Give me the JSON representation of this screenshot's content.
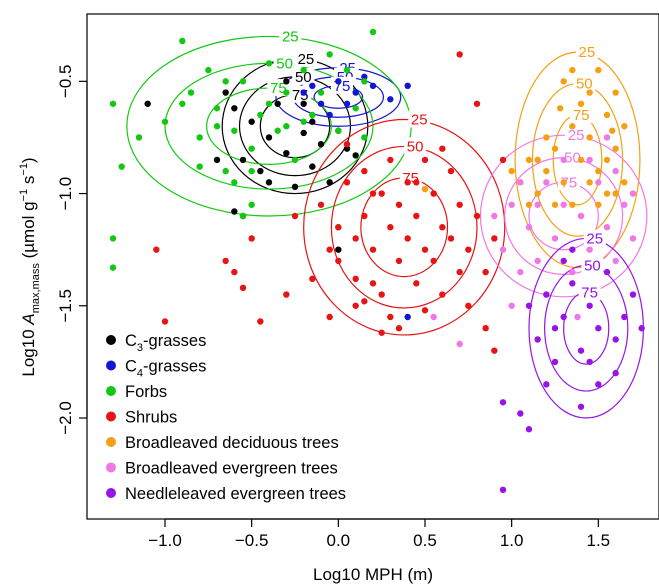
{
  "chart_data": {
    "type": "scatter",
    "title": "",
    "xlabel": "Log10 MPH (m)",
    "ylabel": "Log10 A_max,mass (µmol g⁻¹ s⁻¹)",
    "xlim": [
      -1.45,
      1.85
    ],
    "ylim": [
      -2.45,
      -0.2
    ],
    "x_ticks": [
      -1.0,
      -0.5,
      0.0,
      0.5,
      1.0,
      1.5
    ],
    "x_tick_labels": [
      "−1.0",
      "−0.5",
      "0.0",
      "0.5",
      "1.0",
      "1.5"
    ],
    "y_ticks": [
      -0.5,
      -1.0,
      -1.5,
      -2.0
    ],
    "y_tick_labels": [
      "−0.5",
      "−1.0",
      "−1.5",
      "−2.0"
    ],
    "grid": false,
    "legend_position": "bottom-left",
    "series": [
      {
        "name": "C3-grasses",
        "name_base": "C",
        "name_sub": "3",
        "name_rest": "-grasses",
        "color": "#000000",
        "points": [
          [
            -1.1,
            -0.6
          ],
          [
            -0.65,
            -0.55
          ],
          [
            -0.6,
            -0.62
          ],
          [
            -0.55,
            -0.85
          ],
          [
            -0.5,
            -0.68
          ],
          [
            -0.45,
            -0.9
          ],
          [
            -0.4,
            -0.75
          ],
          [
            -0.35,
            -0.6
          ],
          [
            -0.3,
            -0.82
          ],
          [
            -0.25,
            -0.97
          ],
          [
            -0.2,
            -0.73
          ],
          [
            -0.15,
            -0.88
          ],
          [
            -0.1,
            -0.78
          ],
          [
            -0.05,
            -0.95
          ],
          [
            0.0,
            -0.72
          ],
          [
            0.05,
            -0.8
          ],
          [
            0.1,
            -0.83
          ],
          [
            -0.6,
            -1.08
          ],
          [
            -0.55,
            -1.1
          ],
          [
            -0.4,
            -0.95
          ],
          [
            -0.3,
            -0.5
          ],
          [
            -0.2,
            -0.6
          ],
          [
            0.0,
            -1.25
          ],
          [
            -0.7,
            -0.85
          ],
          [
            -0.15,
            -0.68
          ]
        ],
        "contours": {
          "levels": [
            25,
            50,
            75
          ],
          "center": [
            -0.25,
            -0.7
          ],
          "r": [
            [
              0.42,
              0.3
            ],
            [
              0.32,
              0.22
            ],
            [
              0.2,
              0.14
            ]
          ]
        }
      },
      {
        "name": "C4-grasses",
        "name_base": "C",
        "name_sub": "4",
        "name_rest": "-grasses",
        "color": "#1414d2",
        "points": [
          [
            -0.2,
            -0.55
          ],
          [
            -0.1,
            -0.6
          ],
          [
            0.0,
            -0.5
          ],
          [
            0.1,
            -0.55
          ],
          [
            0.2,
            -0.52
          ],
          [
            0.3,
            -0.58
          ],
          [
            0.15,
            -0.48
          ],
          [
            -0.05,
            -0.65
          ],
          [
            0.4,
            -0.52
          ],
          [
            0.05,
            -0.6
          ],
          [
            0.4,
            -1.55
          ],
          [
            -0.15,
            -0.52
          ]
        ],
        "contours": {
          "levels": [
            25,
            50,
            75
          ],
          "center": [
            0.0,
            -0.57
          ],
          "r": [
            [
              0.36,
              0.13
            ],
            [
              0.26,
              0.09
            ],
            [
              0.14,
              0.05
            ]
          ]
        }
      },
      {
        "name": "Forbs",
        "name_base": "Forbs",
        "name_sub": "",
        "name_rest": "",
        "color": "#12c812",
        "points": [
          [
            -1.3,
            -0.6
          ],
          [
            -1.3,
            -1.2
          ],
          [
            -1.3,
            -1.33
          ],
          [
            -1.25,
            -0.88
          ],
          [
            -1.15,
            -0.75
          ],
          [
            -1.0,
            -0.68
          ],
          [
            -0.9,
            -0.32
          ],
          [
            -0.85,
            -0.55
          ],
          [
            -0.8,
            -0.75
          ],
          [
            -0.75,
            -0.45
          ],
          [
            -0.7,
            -0.62
          ],
          [
            -0.65,
            -0.9
          ],
          [
            -0.6,
            -0.72
          ],
          [
            -0.55,
            -0.5
          ],
          [
            -0.5,
            -0.8
          ],
          [
            -0.45,
            -0.65
          ],
          [
            -0.4,
            -0.42
          ],
          [
            -0.35,
            -0.72
          ],
          [
            -0.3,
            -0.55
          ],
          [
            -0.25,
            -0.85
          ],
          [
            -0.2,
            -0.45
          ],
          [
            -0.15,
            -0.65
          ],
          [
            -0.1,
            -0.55
          ],
          [
            -0.05,
            -0.38
          ],
          [
            0.0,
            -0.72
          ],
          [
            0.1,
            -0.62
          ],
          [
            0.15,
            -0.5
          ],
          [
            0.2,
            -0.28
          ],
          [
            -0.6,
            -0.95
          ],
          [
            -0.5,
            -1.05
          ],
          [
            -0.55,
            -1.1
          ],
          [
            -0.8,
            -0.88
          ],
          [
            -0.7,
            -0.7
          ],
          [
            0.05,
            -0.45
          ],
          [
            0.15,
            -0.75
          ],
          [
            -0.4,
            -0.6
          ],
          [
            -0.3,
            -0.7
          ],
          [
            -0.2,
            -0.68
          ],
          [
            -0.9,
            -0.6
          ],
          [
            0.0,
            -1.15
          ],
          [
            -0.65,
            -0.5
          ],
          [
            -0.5,
            -0.9
          ]
        ],
        "contours": {
          "levels": [
            25,
            50,
            75
          ],
          "center": [
            -0.4,
            -0.7
          ],
          "r": [
            [
              0.82,
              0.4
            ],
            [
              0.6,
              0.28
            ],
            [
              0.36,
              0.17
            ]
          ]
        }
      },
      {
        "name": "Shrubs",
        "name_base": "Shrubs",
        "name_sub": "",
        "name_rest": "",
        "color": "#e61414",
        "points": [
          [
            -1.05,
            -1.25
          ],
          [
            -1.0,
            -1.57
          ],
          [
            -0.65,
            -1.3
          ],
          [
            -0.6,
            -1.35
          ],
          [
            -0.5,
            -1.2
          ],
          [
            -0.55,
            -1.42
          ],
          [
            -0.45,
            -1.57
          ],
          [
            -0.3,
            -1.45
          ],
          [
            -0.25,
            -1.1
          ],
          [
            -0.15,
            -1.38
          ],
          [
            -0.1,
            -1.05
          ],
          [
            -0.05,
            -1.55
          ],
          [
            0.0,
            -1.3
          ],
          [
            0.05,
            -0.95
          ],
          [
            0.1,
            -1.2
          ],
          [
            0.1,
            -1.5
          ],
          [
            0.15,
            -0.9
          ],
          [
            0.15,
            -1.1
          ],
          [
            0.2,
            -1.25
          ],
          [
            0.2,
            -1.4
          ],
          [
            0.25,
            -1.0
          ],
          [
            0.25,
            -1.45
          ],
          [
            0.3,
            -1.15
          ],
          [
            0.3,
            -0.85
          ],
          [
            0.35,
            -1.3
          ],
          [
            0.35,
            -1.05
          ],
          [
            0.4,
            -1.2
          ],
          [
            0.4,
            -0.95
          ],
          [
            0.45,
            -1.4
          ],
          [
            0.45,
            -1.1
          ],
          [
            0.5,
            -1.25
          ],
          [
            0.5,
            -0.85
          ],
          [
            0.55,
            -1.0
          ],
          [
            0.55,
            -1.3
          ],
          [
            0.6,
            -1.15
          ],
          [
            0.6,
            -1.45
          ],
          [
            0.65,
            -0.9
          ],
          [
            0.65,
            -1.2
          ],
          [
            0.7,
            -1.35
          ],
          [
            0.7,
            -1.05
          ],
          [
            0.75,
            -1.25
          ],
          [
            0.75,
            -1.5
          ],
          [
            0.8,
            -1.1
          ],
          [
            0.85,
            -1.35
          ],
          [
            0.85,
            -1.6
          ],
          [
            0.9,
            -1.2
          ],
          [
            0.05,
            -0.78
          ],
          [
            0.1,
            -1.38
          ],
          [
            0.2,
            -1.0
          ],
          [
            0.3,
            -1.55
          ],
          [
            0.5,
            -1.52
          ],
          [
            0.7,
            -0.38
          ],
          [
            0.9,
            -1.7
          ],
          [
            0.95,
            -0.85
          ],
          [
            0.35,
            -1.6
          ],
          [
            0.25,
            -1.62
          ],
          [
            0.15,
            -1.48
          ],
          [
            0.45,
            -0.95
          ],
          [
            0.6,
            -0.8
          ],
          [
            0.8,
            -0.6
          ],
          [
            0.0,
            -1.15
          ],
          [
            -0.05,
            -1.25
          ]
        ],
        "contours": {
          "levels": [
            25,
            50,
            75
          ],
          "center": [
            0.38,
            -1.15
          ],
          "r": [
            [
              0.58,
              0.48
            ],
            [
              0.42,
              0.36
            ],
            [
              0.25,
              0.22
            ]
          ]
        }
      },
      {
        "name": "Broadleaved deciduous trees",
        "name_base": "Broadleaved deciduous trees",
        "name_sub": "",
        "name_rest": "",
        "color": "#f5a014",
        "points": [
          [
            1.05,
            -0.95
          ],
          [
            1.1,
            -0.85
          ],
          [
            1.15,
            -1.0
          ],
          [
            1.2,
            -0.9
          ],
          [
            1.25,
            -0.8
          ],
          [
            1.3,
            -0.95
          ],
          [
            1.35,
            -0.7
          ],
          [
            1.35,
            -1.05
          ],
          [
            1.4,
            -0.85
          ],
          [
            1.4,
            -0.6
          ],
          [
            1.45,
            -0.95
          ],
          [
            1.45,
            -0.75
          ],
          [
            1.5,
            -0.45
          ],
          [
            1.5,
            -0.9
          ],
          [
            1.55,
            -0.65
          ],
          [
            1.55,
            -1.0
          ],
          [
            1.6,
            -0.8
          ],
          [
            1.6,
            -0.55
          ],
          [
            1.65,
            -0.95
          ],
          [
            1.65,
            -0.7
          ],
          [
            1.3,
            -0.5
          ],
          [
            1.25,
            -1.05
          ],
          [
            1.2,
            -0.75
          ],
          [
            1.4,
            -1.1
          ],
          [
            1.5,
            -1.05
          ],
          [
            1.45,
            -0.55
          ],
          [
            1.35,
            -0.45
          ],
          [
            1.15,
            -0.85
          ],
          [
            1.55,
            -0.85
          ],
          [
            1.6,
            -1.0
          ],
          [
            1.0,
            -0.9
          ],
          [
            1.1,
            -1.05
          ],
          [
            0.5,
            -0.98
          ],
          [
            1.28,
            -0.62
          ],
          [
            1.58,
            -0.72
          ]
        ],
        "contours": {
          "levels": [
            25,
            50,
            75
          ],
          "center": [
            1.38,
            -0.85
          ],
          "r": [
            [
              0.36,
              0.48
            ],
            [
              0.26,
              0.34
            ],
            [
              0.14,
              0.2
            ]
          ]
        }
      },
      {
        "name": "Broadleaved evergreen trees",
        "name_base": "Broadleaved evergreen trees",
        "name_sub": "",
        "name_rest": "",
        "color": "#f078e6",
        "points": [
          [
            0.9,
            -1.1
          ],
          [
            0.95,
            -1.25
          ],
          [
            1.0,
            -1.05
          ],
          [
            1.05,
            -1.35
          ],
          [
            1.1,
            -1.15
          ],
          [
            1.15,
            -1.3
          ],
          [
            1.2,
            -0.95
          ],
          [
            1.25,
            -1.2
          ],
          [
            1.3,
            -1.05
          ],
          [
            1.35,
            -1.35
          ],
          [
            1.4,
            -1.1
          ],
          [
            1.45,
            -1.25
          ],
          [
            1.5,
            -0.95
          ],
          [
            1.55,
            -1.15
          ],
          [
            1.6,
            -1.3
          ],
          [
            1.65,
            -1.05
          ],
          [
            1.7,
            -1.2
          ],
          [
            1.3,
            -0.85
          ],
          [
            1.45,
            -0.85
          ],
          [
            1.55,
            -0.75
          ],
          [
            0.7,
            -1.67
          ],
          [
            0.55,
            -1.55
          ],
          [
            1.0,
            -1.5
          ],
          [
            1.2,
            -1.45
          ],
          [
            1.6,
            -0.9
          ],
          [
            1.15,
            -1.05
          ],
          [
            1.38,
            -1.55
          ],
          [
            1.05,
            -0.95
          ],
          [
            1.7,
            -1.0
          ]
        ],
        "contours": {
          "levels": [
            25,
            50,
            75
          ],
          "center": [
            1.3,
            -1.1
          ],
          "r": [
            [
              0.48,
              0.36
            ],
            [
              0.34,
              0.26
            ],
            [
              0.2,
              0.15
            ]
          ]
        }
      },
      {
        "name": "Needleleaved evergreen trees",
        "name_base": "Needleleaved evergreen trees",
        "name_sub": "",
        "name_rest": "",
        "color": "#9614e6",
        "points": [
          [
            0.95,
            -1.93
          ],
          [
            1.05,
            -1.98
          ],
          [
            1.1,
            -1.5
          ],
          [
            1.15,
            -1.65
          ],
          [
            1.2,
            -1.45
          ],
          [
            1.25,
            -1.75
          ],
          [
            1.3,
            -1.55
          ],
          [
            1.35,
            -1.4
          ],
          [
            1.4,
            -1.7
          ],
          [
            1.45,
            -1.5
          ],
          [
            1.5,
            -1.6
          ],
          [
            1.55,
            -1.35
          ],
          [
            1.6,
            -1.8
          ],
          [
            1.65,
            -1.55
          ],
          [
            1.7,
            -1.45
          ],
          [
            1.2,
            -1.85
          ],
          [
            1.3,
            -1.3
          ],
          [
            1.4,
            -1.95
          ],
          [
            1.5,
            -1.85
          ],
          [
            1.1,
            -2.05
          ],
          [
            0.95,
            -2.32
          ],
          [
            1.25,
            -1.6
          ],
          [
            1.45,
            -1.75
          ],
          [
            1.6,
            -1.65
          ],
          [
            1.35,
            -1.25
          ],
          [
            1.75,
            -1.6
          ]
        ],
        "contours": {
          "levels": [
            25,
            50,
            75
          ],
          "center": [
            1.43,
            -1.6
          ],
          "r": [
            [
              0.33,
              0.4
            ],
            [
              0.24,
              0.28
            ],
            [
              0.13,
              0.16
            ]
          ]
        }
      }
    ]
  }
}
